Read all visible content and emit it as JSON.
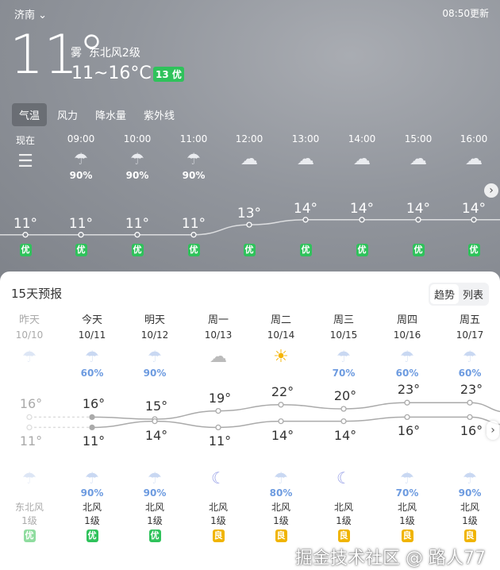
{
  "header": {
    "city": "济南",
    "updated": "08:50更新",
    "temp": "11°",
    "weather": "雾",
    "wind": "东北风2级",
    "range": "11~16°C",
    "aqi": "13 优"
  },
  "tabs": [
    "气温",
    "风力",
    "降水量",
    "紫外线"
  ],
  "hourly": [
    {
      "time": "现在",
      "icon": "list-icon",
      "pct": "",
      "temp": 11,
      "label": "11°",
      "aq": "优"
    },
    {
      "time": "09:00",
      "icon": "rain-cloud-icon",
      "pct": "90%",
      "temp": 11,
      "label": "11°",
      "aq": "优"
    },
    {
      "time": "10:00",
      "icon": "rain-cloud-icon",
      "pct": "90%",
      "temp": 11,
      "label": "11°",
      "aq": "优"
    },
    {
      "time": "11:00",
      "icon": "rain-cloud-icon",
      "pct": "90%",
      "temp": 11,
      "label": "11°",
      "aq": "优"
    },
    {
      "time": "12:00",
      "icon": "cloud-icon",
      "pct": "",
      "temp": 13,
      "label": "13°",
      "aq": "优"
    },
    {
      "time": "13:00",
      "icon": "cloud-icon",
      "pct": "",
      "temp": 14,
      "label": "14°",
      "aq": "优"
    },
    {
      "time": "14:00",
      "icon": "cloud-icon",
      "pct": "",
      "temp": 14,
      "label": "14°",
      "aq": "优"
    },
    {
      "time": "15:00",
      "icon": "cloud-icon",
      "pct": "",
      "temp": 14,
      "label": "14°",
      "aq": "优"
    },
    {
      "time": "16:00",
      "icon": "cloud-icon",
      "pct": "",
      "temp": 14,
      "label": "14°",
      "aq": "优"
    }
  ],
  "forecast": {
    "title": "15天预报",
    "toggle": [
      "趋势",
      "列表"
    ],
    "days": [
      {
        "day": "昨天",
        "date": "10/10",
        "icon": "rain-cloud-icon",
        "pct": "",
        "high": 16,
        "hl": "16°",
        "low": 11,
        "ll": "11°",
        "nicon": "rain-cloud-icon",
        "npct": "",
        "wind": "东北风",
        "lvl": "1级",
        "aq": "优",
        "aqc": "#8fdc9f",
        "past": true
      },
      {
        "day": "今天",
        "date": "10/11",
        "icon": "rain-cloud-icon",
        "pct": "60%",
        "high": 16,
        "hl": "16°",
        "low": 11,
        "ll": "11°",
        "nicon": "rain-cloud-icon",
        "npct": "90%",
        "wind": "北风",
        "lvl": "1级",
        "aq": "优",
        "aqc": "#2fc25b"
      },
      {
        "day": "明天",
        "date": "10/12",
        "icon": "rain-cloud-icon",
        "pct": "90%",
        "high": 15,
        "hl": "15°",
        "low": 14,
        "ll": "14°",
        "nicon": "rain-cloud-icon",
        "npct": "90%",
        "wind": "北风",
        "lvl": "1级",
        "aq": "优",
        "aqc": "#2fc25b"
      },
      {
        "day": "周一",
        "date": "10/13",
        "icon": "cloud-icon",
        "pct": "",
        "high": 19,
        "hl": "19°",
        "low": 11,
        "ll": "11°",
        "nicon": "moon-cloud-icon",
        "npct": "",
        "wind": "北风",
        "lvl": "1级",
        "aq": "良",
        "aqc": "#f0b400"
      },
      {
        "day": "周二",
        "date": "10/14",
        "icon": "sun-cloud-icon",
        "pct": "",
        "high": 22,
        "hl": "22°",
        "low": 14,
        "ll": "14°",
        "nicon": "rain-cloud-icon",
        "npct": "80%",
        "wind": "北风",
        "lvl": "1级",
        "aq": "良",
        "aqc": "#f0b400"
      },
      {
        "day": "周三",
        "date": "10/15",
        "icon": "rain-cloud-icon",
        "pct": "70%",
        "high": 20,
        "hl": "20°",
        "low": 14,
        "ll": "14°",
        "nicon": "moon-cloud-icon",
        "npct": "",
        "wind": "北风",
        "lvl": "1级",
        "aq": "良",
        "aqc": "#f0b400"
      },
      {
        "day": "周四",
        "date": "10/16",
        "icon": "rain-cloud-icon",
        "pct": "60%",
        "high": 23,
        "hl": "23°",
        "low": 16,
        "ll": "16°",
        "nicon": "rain-cloud-icon",
        "npct": "70%",
        "wind": "北风",
        "lvl": "1级",
        "aq": "良",
        "aqc": "#f0b400"
      },
      {
        "day": "周五",
        "date": "10/17",
        "icon": "rain-cloud-icon",
        "pct": "60%",
        "high": 23,
        "hl": "23°",
        "low": 16,
        "ll": "16°",
        "nicon": "rain-cloud-icon",
        "npct": "90%",
        "wind": "北风",
        "lvl": "1级",
        "aq": "良",
        "aqc": "#f0b400"
      }
    ]
  },
  "watermark": "掘金技术社区 @ 路人77",
  "colors": {
    "good": "#2fc25b",
    "moderate": "#f0b400",
    "precip": "#6d9be0"
  }
}
